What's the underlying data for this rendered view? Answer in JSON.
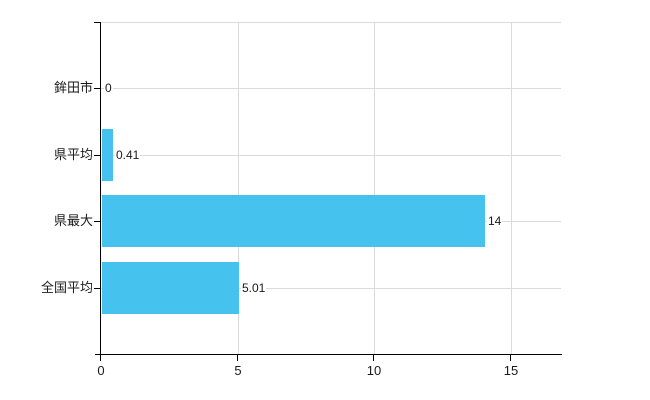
{
  "chart_data": {
    "type": "bar",
    "orientation": "horizontal",
    "title": "",
    "categories": [
      "鉾田市",
      "県平均",
      "県最大",
      "全国平均"
    ],
    "values": [
      0,
      0.41,
      14,
      5.01
    ],
    "value_labels": [
      "0",
      "0.41",
      "14",
      "5.01"
    ],
    "x_ticks": [
      0,
      5,
      10,
      15
    ],
    "x_tick_labels": [
      "0",
      "5",
      "10",
      "15"
    ],
    "xlim": [
      0,
      16.8
    ],
    "grid": true,
    "legend": false,
    "colors": {
      "bar": "#46C2EF",
      "gridline": "#DBDBDB",
      "axis": "#000000",
      "text": "#1A1A1A"
    }
  }
}
